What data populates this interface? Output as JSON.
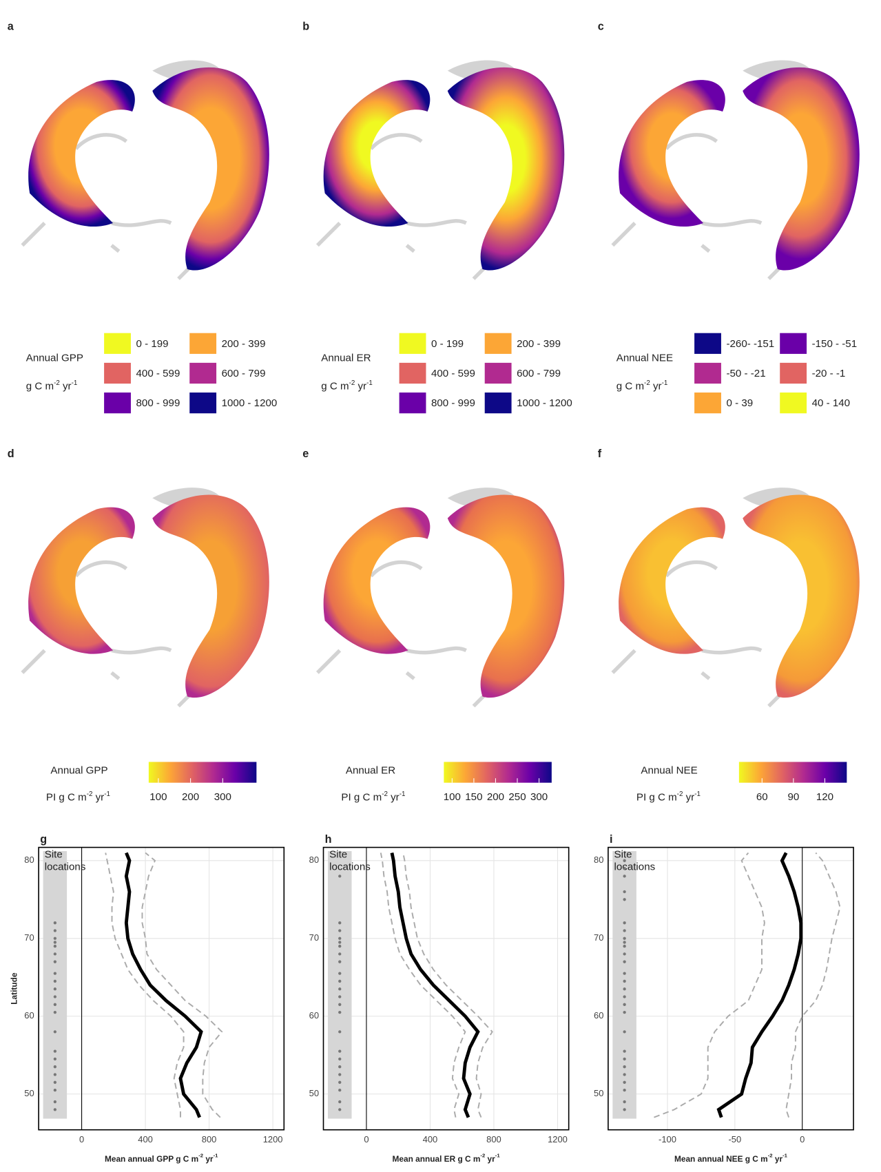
{
  "chart_data": [
    {
      "type": "map",
      "panel": "a",
      "legend_title": "Annual GPP",
      "legend_unit": [
        "g C m",
        "-2",
        " yr",
        "-1"
      ],
      "legend": [
        {
          "label": "0 - 199",
          "color": "#f0f921"
        },
        {
          "label": "200 - 399",
          "color": "#fca636"
        },
        {
          "label": "400 - 599",
          "color": "#e16462"
        },
        {
          "label": "600 - 799",
          "color": "#b12a90"
        },
        {
          "label": "800 - 999",
          "color": "#6a00a8"
        },
        {
          "label": "1000 - 1200",
          "color": "#0d0887"
        }
      ]
    },
    {
      "type": "map",
      "panel": "b",
      "legend_title": "Annual ER",
      "legend_unit": [
        "g C m",
        "-2",
        " yr",
        "-1"
      ],
      "legend": [
        {
          "label": "0 - 199",
          "color": "#f0f921"
        },
        {
          "label": "200 - 399",
          "color": "#fca636"
        },
        {
          "label": "400 - 599",
          "color": "#e16462"
        },
        {
          "label": "600 - 799",
          "color": "#b12a90"
        },
        {
          "label": "800 - 999",
          "color": "#6a00a8"
        },
        {
          "label": "1000 - 1200",
          "color": "#0d0887"
        }
      ]
    },
    {
      "type": "map",
      "panel": "c",
      "legend_title": "Annual NEE",
      "legend_unit": [
        "g C m",
        "-2",
        " yr",
        "-1"
      ],
      "legend": [
        {
          "label": "-260- -151",
          "color": "#0d0887"
        },
        {
          "label": "-150 - -51",
          "color": "#6a00a8"
        },
        {
          "label": "-50 - -21",
          "color": "#b12a90"
        },
        {
          "label": "-20 - -1",
          "color": "#e16462"
        },
        {
          "label": "0 - 39",
          "color": "#fca636"
        },
        {
          "label": "40 - 140",
          "color": "#f0f921"
        }
      ]
    },
    {
      "type": "map",
      "panel": "d",
      "legend_title": "Annual GPP",
      "legend_unit": [
        "PI g C m",
        "-2",
        " yr",
        "-1"
      ],
      "colorbar": {
        "colors": [
          "#f0f921",
          "#fca636",
          "#e16462",
          "#b12a90",
          "#6a00a8",
          "#0d0887"
        ],
        "lim": [
          70,
          405
        ],
        "ticks": [
          100,
          200,
          300
        ]
      }
    },
    {
      "type": "map",
      "panel": "e",
      "legend_title": "Annual ER",
      "legend_unit": [
        "PI g C m",
        "-2",
        " yr",
        "-1"
      ],
      "colorbar": {
        "colors": [
          "#f0f921",
          "#fca636",
          "#e16462",
          "#b12a90",
          "#6a00a8",
          "#0d0887"
        ],
        "lim": [
          81,
          329
        ],
        "ticks": [
          100,
          150,
          200,
          250,
          300
        ]
      }
    },
    {
      "type": "map",
      "panel": "f",
      "legend_title": "Annual NEE",
      "legend_unit": [
        "PI g C m",
        "-2",
        " yr",
        "-1"
      ],
      "colorbar": {
        "colors": [
          "#f0f921",
          "#fca636",
          "#e16462",
          "#b12a90",
          "#6a00a8",
          "#0d0887"
        ],
        "lim": [
          38,
          141
        ],
        "ticks": [
          60,
          90,
          120
        ]
      }
    },
    {
      "type": "line",
      "panel": "g",
      "ylabel": "Latitude",
      "xlabel": [
        "Mean annual GPP g C m",
        "-2",
        " yr",
        "-1"
      ],
      "annotation": [
        "Site",
        "locations"
      ],
      "xlim": [
        -270,
        1270
      ],
      "xticks": [
        0,
        400,
        800,
        1200
      ],
      "ylim": [
        45.4,
        81.7
      ],
      "yticks": [
        50,
        60,
        70,
        80
      ],
      "grid": true,
      "y": [
        47,
        48,
        50,
        52,
        54,
        56,
        58,
        60,
        62,
        64,
        66,
        68,
        70,
        72,
        74,
        76,
        78,
        80,
        81
      ],
      "series": [
        {
          "color": "#000000",
          "style": "solid",
          "values": [
            740,
            720,
            640,
            620,
            660,
            720,
            750,
            650,
            530,
            430,
            370,
            320,
            290,
            280,
            290,
            300,
            280,
            300,
            280
          ]
        },
        {
          "color": "#aaaaaa",
          "style": "dashed",
          "values": [
            870,
            820,
            760,
            760,
            770,
            800,
            880,
            780,
            650,
            560,
            470,
            410,
            400,
            380,
            380,
            400,
            420,
            460,
            400
          ]
        },
        {
          "color": "#aaaaaa",
          "style": "dashed",
          "values": [
            620,
            620,
            600,
            580,
            600,
            640,
            640,
            560,
            450,
            360,
            290,
            250,
            210,
            190,
            190,
            200,
            180,
            160,
            150
          ]
        }
      ],
      "site_color": "#777777",
      "sites": [
        48,
        49,
        50.5,
        51.5,
        52.5,
        53.5,
        54.5,
        55.5,
        58,
        60.5,
        61.5,
        62.5,
        63.5,
        64.5,
        65.5,
        67,
        68,
        69,
        69.5,
        70,
        71,
        72
      ]
    },
    {
      "type": "line",
      "panel": "h",
      "xlabel": [
        "Mean annual ER g C m",
        "-2",
        " yr",
        "-1"
      ],
      "annotation": [
        "Site",
        "locations"
      ],
      "xlim": [
        -270,
        1270
      ],
      "xticks": [
        0,
        400,
        800,
        1200
      ],
      "ylim": [
        45.4,
        81.7
      ],
      "yticks": [
        50,
        60,
        70,
        80
      ],
      "grid": true,
      "y": [
        47,
        48,
        50,
        52,
        54,
        56,
        58,
        60,
        62,
        64,
        66,
        68,
        70,
        72,
        74,
        76,
        78,
        80,
        81
      ],
      "series": [
        {
          "color": "#000000",
          "style": "solid",
          "values": [
            640,
            620,
            650,
            610,
            620,
            650,
            700,
            620,
            520,
            420,
            340,
            280,
            250,
            230,
            210,
            200,
            180,
            170,
            160
          ]
        },
        {
          "color": "#aaaaaa",
          "style": "dashed",
          "values": [
            720,
            700,
            720,
            690,
            700,
            730,
            790,
            700,
            600,
            500,
            420,
            360,
            320,
            300,
            280,
            270,
            250,
            240,
            230
          ]
        },
        {
          "color": "#aaaaaa",
          "style": "dashed",
          "values": [
            560,
            550,
            580,
            540,
            550,
            580,
            620,
            540,
            440,
            340,
            270,
            210,
            180,
            160,
            140,
            130,
            110,
            100,
            90
          ]
        }
      ],
      "site_color": "#777777",
      "sites": [
        48,
        49,
        50.5,
        51.5,
        52.5,
        53.5,
        54.5,
        55.5,
        58,
        60.5,
        61.5,
        62.5,
        63.5,
        64.5,
        65.5,
        67,
        68,
        69,
        69.5,
        70,
        71,
        72,
        78
      ]
    },
    {
      "type": "line",
      "panel": "i",
      "xlabel": [
        "Mean annual NEE g C m",
        "-2",
        " yr",
        "-1"
      ],
      "annotation": [
        "Site",
        "locations"
      ],
      "xlim": [
        -144,
        38
      ],
      "xticks": [
        -100,
        -50,
        0
      ],
      "ylim": [
        45.4,
        81.7
      ],
      "yticks": [
        50,
        60,
        70,
        80
      ],
      "grid": true,
      "y": [
        47,
        48,
        50,
        52,
        54,
        56,
        58,
        60,
        62,
        64,
        66,
        68,
        70,
        72,
        74,
        76,
        78,
        80,
        81
      ],
      "series": [
        {
          "color": "#000000",
          "style": "solid",
          "values": [
            -60,
            -62,
            -45,
            -42,
            -38,
            -37,
            -30,
            -22,
            -15,
            -10,
            -6,
            -3,
            -1,
            -1,
            -3,
            -6,
            -10,
            -15,
            -12
          ]
        },
        {
          "color": "#aaaaaa",
          "style": "dashed",
          "values": [
            -10,
            -12,
            -10,
            -8,
            -8,
            -5,
            -5,
            0,
            10,
            15,
            18,
            20,
            22,
            25,
            28,
            25,
            20,
            15,
            10
          ]
        },
        {
          "color": "#aaaaaa",
          "style": "dashed",
          "values": [
            -110,
            -95,
            -75,
            -70,
            -70,
            -70,
            -65,
            -55,
            -40,
            -35,
            -30,
            -30,
            -30,
            -28,
            -30,
            -35,
            -40,
            -45,
            -40
          ]
        }
      ],
      "site_color": "#777777",
      "sites": [
        48,
        49,
        50.5,
        51.5,
        52.5,
        53.5,
        54.5,
        55.5,
        58,
        60.5,
        61.5,
        62.5,
        63.5,
        64.5,
        65.5,
        67,
        68,
        69,
        69.5,
        70,
        71,
        72,
        75,
        76,
        78,
        79,
        80
      ]
    }
  ]
}
